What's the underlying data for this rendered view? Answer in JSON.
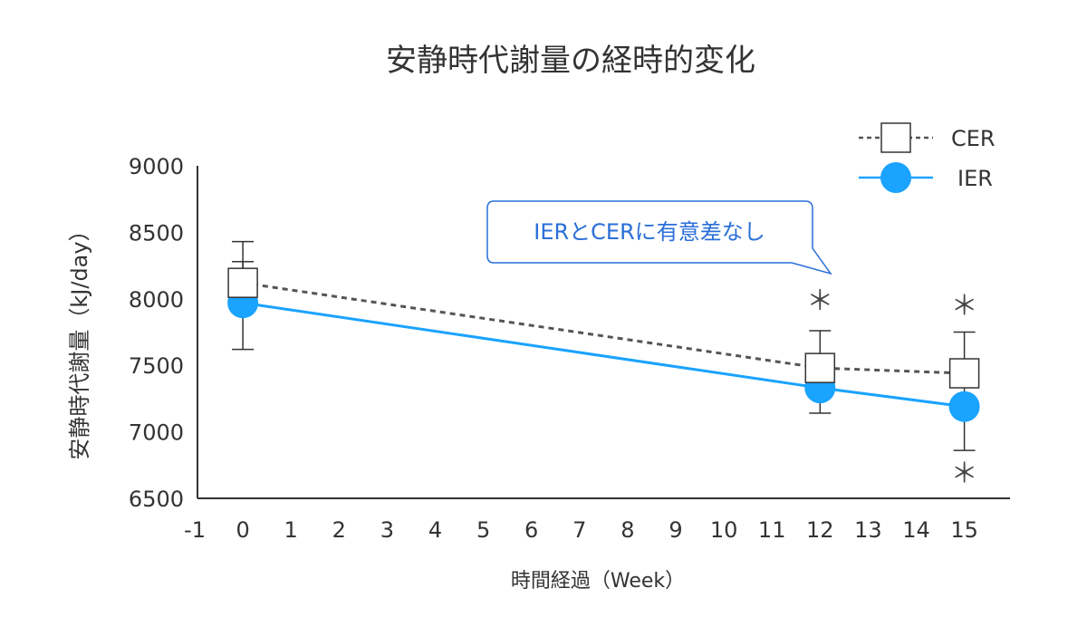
{
  "chart_data": {
    "type": "line",
    "title": "安静時代謝量の経時的変化",
    "xlabel": "時間経過（Week）",
    "ylabel": "安静時代謝量（kJ/day）",
    "xlim": [
      -1,
      15
    ],
    "ylim": [
      6500,
      9000
    ],
    "xticks": [
      -1,
      0,
      1,
      2,
      3,
      4,
      5,
      6,
      7,
      8,
      9,
      10,
      11,
      12,
      13,
      14,
      15
    ],
    "yticks": [
      6500,
      7000,
      7500,
      8000,
      8500,
      9000
    ],
    "grid": false,
    "legend_position": "top-right",
    "series": [
      {
        "name": "CER",
        "color": "#555555",
        "line_style": "dashed",
        "marker": "open-square",
        "x": [
          0,
          12,
          15
        ],
        "y": [
          8120,
          7480,
          7440
        ],
        "err_low": [
          7620,
          7140,
          6860
        ],
        "err_high": [
          8430,
          7760,
          7750
        ]
      },
      {
        "name": "IER",
        "color": "#1aa3ff",
        "line_style": "solid",
        "marker": "filled-circle",
        "x": [
          0,
          12,
          15
        ],
        "y": [
          7970,
          7330,
          7190
        ],
        "err_low": [
          7970,
          7330,
          7190
        ],
        "err_high": [
          8280,
          7330,
          7190
        ]
      }
    ],
    "annotations": [
      {
        "text": "＊",
        "x": 12,
        "y": 8000
      },
      {
        "text": "＊",
        "x": 15,
        "y": 7960
      },
      {
        "text": "＊",
        "x": 15,
        "y": 6700
      }
    ],
    "callout": {
      "text": "IERとCERに有意差なし",
      "color": "#2a6fd8"
    }
  }
}
